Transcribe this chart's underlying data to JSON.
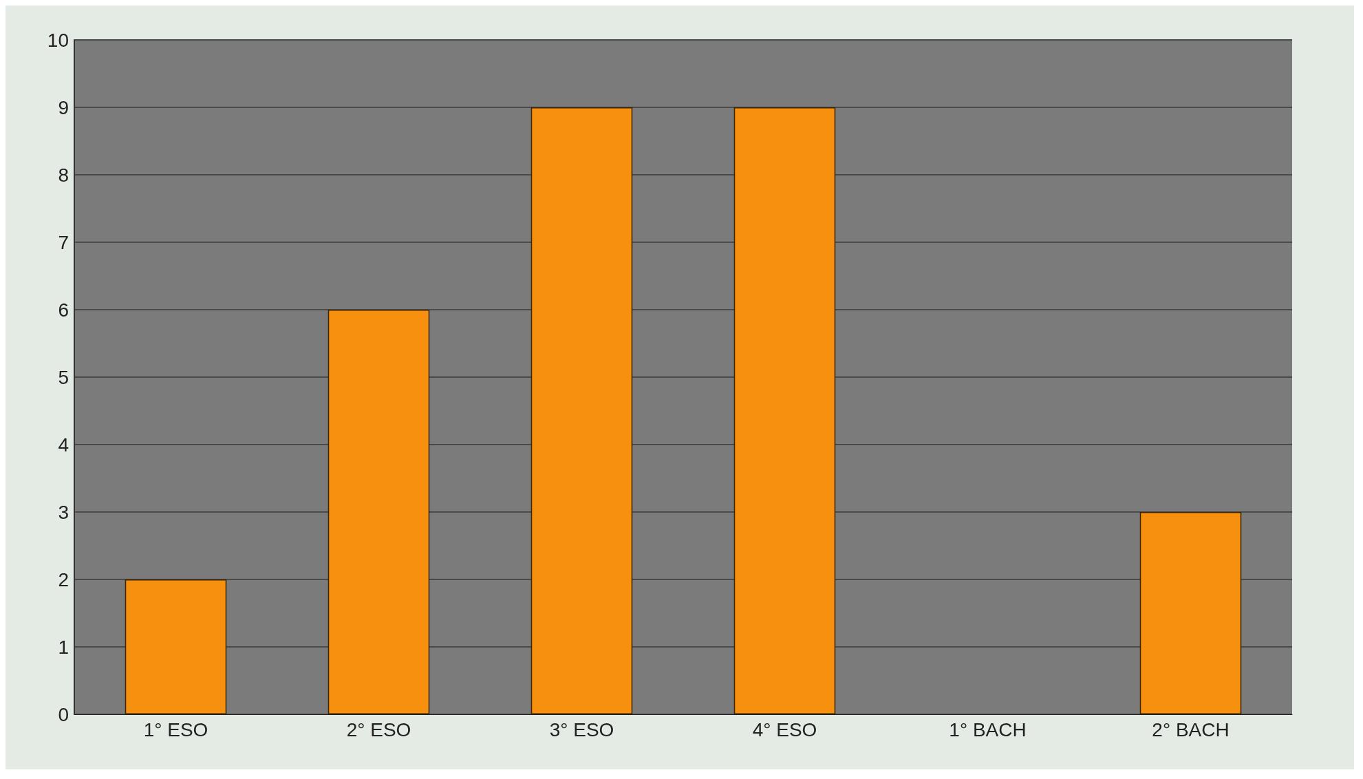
{
  "chart_data": {
    "type": "bar",
    "categories": [
      "1° ESO",
      "2° ESO",
      "3° ESO",
      "4° ESO",
      "1° BACH",
      "2° BACH"
    ],
    "values": [
      2,
      6,
      9,
      9,
      0,
      3
    ],
    "color": "#f7900e",
    "ylim": [
      0,
      10
    ],
    "yticks": [
      0,
      1,
      2,
      3,
      4,
      5,
      6,
      7,
      8,
      9,
      10
    ],
    "grid": "y"
  }
}
